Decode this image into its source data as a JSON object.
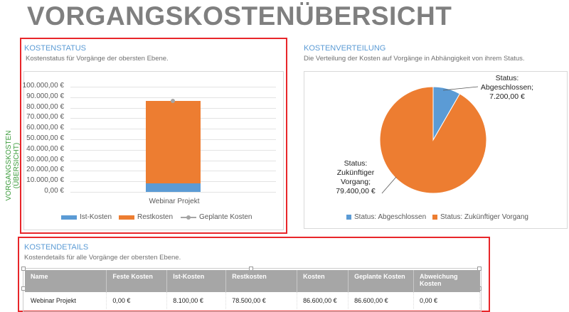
{
  "page_title": "VORGANGSKOSTENÜBERSICHT",
  "side_label": "VORGANGSKOSTEN (ÜBERSICHT)",
  "kostenstatus": {
    "title": "KOSTENSTATUS",
    "subtitle": "Kostenstatus für Vorgänge der obersten Ebene."
  },
  "kostenverteilung": {
    "title": "KOSTENVERTEILUNG",
    "subtitle": "Die Verteilung der Kosten auf Vorgänge in Abhängigkeit von ihrem Status."
  },
  "kostendetails": {
    "title": "KOSTENDETAILS",
    "subtitle": "Kostendetails für alle Vorgänge der obersten Ebene.",
    "columns": [
      "Name",
      "Feste Kosten",
      "Ist-Kosten",
      "Restkosten",
      "Kosten",
      "Geplante Kosten",
      "Abweichung Kosten"
    ],
    "rows": [
      [
        "Webinar Projekt",
        "0,00 €",
        "8.100,00 €",
        "78.500,00 €",
        "86.600,00 €",
        "86.600,00 €",
        "0,00 €"
      ]
    ]
  },
  "chart_data": [
    {
      "type": "bar",
      "stacked": true,
      "categories": [
        "Webinar Projekt"
      ],
      "series": [
        {
          "name": "Ist-Kosten",
          "values": [
            8100
          ],
          "color": "#5b9bd5"
        },
        {
          "name": "Restkosten",
          "values": [
            78500
          ],
          "color": "#ed7d31"
        },
        {
          "name": "Geplante Kosten",
          "values": [
            86600
          ],
          "color": "#a5a5a5",
          "kind": "line-marker"
        }
      ],
      "ylim": [
        0,
        100000
      ],
      "yticks": [
        "100.000,00 €",
        "90.000,00 €",
        "80.000,00 €",
        "70.000,00 €",
        "60.000,00 €",
        "50.000,00 €",
        "40.000,00 €",
        "30.000,00 €",
        "20.000,00 €",
        "10.000,00 €",
        "0,00 €"
      ],
      "grid": true,
      "legend": "bottom"
    },
    {
      "type": "pie",
      "slices": [
        {
          "name": "Status: Abgeschlossen",
          "value": 7200,
          "label_lines": [
            "Status:",
            "Abgeschlossen;",
            "7.200,00 €"
          ],
          "color": "#5b9bd5"
        },
        {
          "name": "Status: Zukünftiger Vorgang",
          "value": 79400,
          "label_lines": [
            "Status:",
            "Zukünftiger",
            "Vorgang;",
            "79.400,00 €"
          ],
          "color": "#ed7d31"
        }
      ],
      "legend": "bottom"
    }
  ]
}
